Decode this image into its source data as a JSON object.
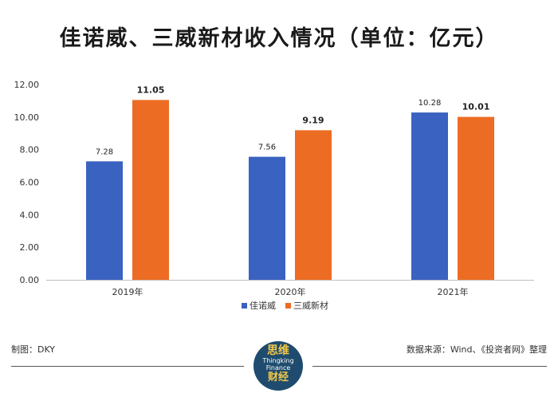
{
  "title": "佳诺威、三威新材收入情况（单位：亿元）",
  "footer": {
    "left": "制图：DKY",
    "right": "数据来源：Wind、《投资者网》整理"
  },
  "logo": {
    "line1": "思维",
    "line2": "Thingking",
    "line3": "Finance",
    "line4": "财经"
  },
  "colors": {
    "blue": "#3a62c0",
    "orange": "#ec6c24"
  },
  "chart_data": {
    "type": "bar",
    "title": "佳诺威、三威新材收入情况（单位：亿元）",
    "categories": [
      "2019年",
      "2020年",
      "2021年"
    ],
    "series": [
      {
        "name": "佳诺威",
        "values": [
          7.28,
          7.56,
          10.28
        ],
        "labels": [
          "7.28",
          "7.56",
          "10.28"
        ]
      },
      {
        "name": "三威新材",
        "values": [
          11.05,
          9.19,
          10.01
        ],
        "labels": [
          "11.05",
          "9.19",
          "10.01"
        ]
      }
    ],
    "yticks": [
      "0.00",
      "2.00",
      "4.00",
      "6.00",
      "8.00",
      "10.00",
      "12.00"
    ],
    "ylim": [
      0,
      12
    ],
    "xlabel": "",
    "ylabel": "",
    "legend": "bottom-center"
  }
}
